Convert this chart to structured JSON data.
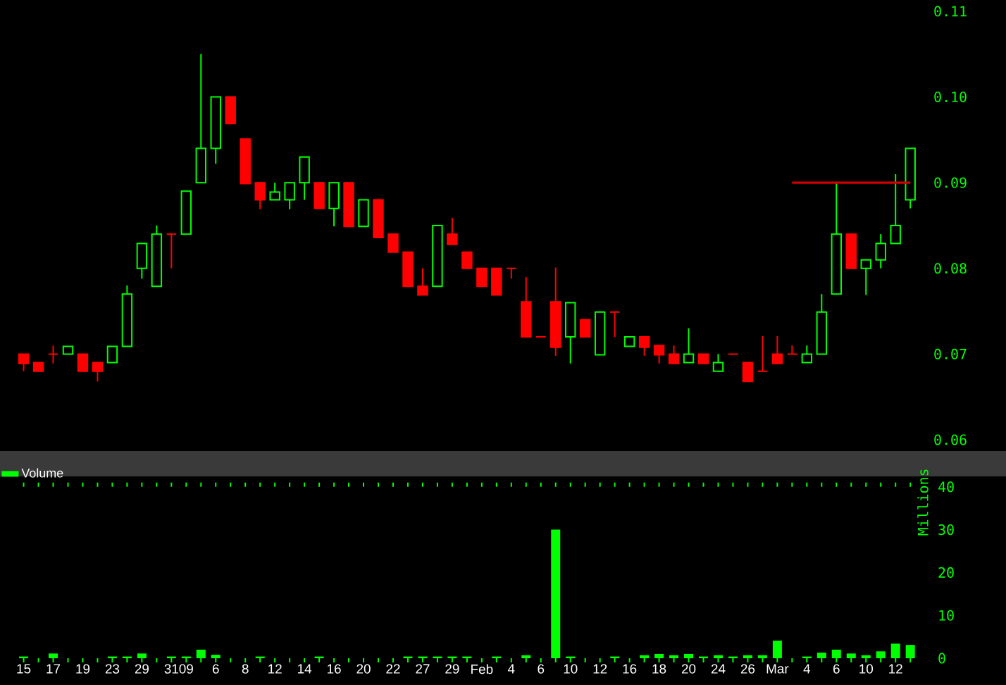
{
  "chart_data": [
    {
      "type": "candlestick",
      "ohlc": [
        [
          0.07,
          0.07,
          0.068,
          0.0689
        ],
        [
          0.069,
          0.069,
          0.068,
          0.068
        ],
        [
          0.07,
          0.071,
          0.0689,
          0.07
        ],
        [
          0.07,
          0.0709,
          0.07,
          0.0709
        ],
        [
          0.07,
          0.07,
          0.068,
          0.068
        ],
        [
          0.069,
          0.069,
          0.0668,
          0.068
        ],
        [
          0.069,
          0.0709,
          0.069,
          0.0709
        ],
        [
          0.0709,
          0.078,
          0.0709,
          0.077
        ],
        [
          0.08,
          0.0829,
          0.0788,
          0.0829
        ],
        [
          0.0779,
          0.085,
          0.0779,
          0.084
        ],
        [
          0.084,
          0.084,
          0.08,
          0.084
        ],
        [
          0.084,
          0.089,
          0.084,
          0.089
        ],
        [
          0.09,
          0.105,
          0.09,
          0.094
        ],
        [
          0.094,
          0.1,
          0.0922,
          0.1
        ],
        [
          0.1,
          0.1,
          0.0969,
          0.0969
        ],
        [
          0.0951,
          0.0951,
          0.0899,
          0.0899
        ],
        [
          0.09,
          0.09,
          0.0869,
          0.088
        ],
        [
          0.088,
          0.09,
          0.088,
          0.0889
        ],
        [
          0.088,
          0.09,
          0.0869,
          0.09
        ],
        [
          0.09,
          0.093,
          0.088,
          0.093
        ],
        [
          0.09,
          0.09,
          0.087,
          0.087
        ],
        [
          0.087,
          0.09,
          0.0849,
          0.09
        ],
        [
          0.09,
          0.09,
          0.0849,
          0.0849
        ],
        [
          0.0849,
          0.088,
          0.0849,
          0.088
        ],
        [
          0.088,
          0.088,
          0.0836,
          0.0836
        ],
        [
          0.084,
          0.084,
          0.0819,
          0.0819
        ],
        [
          0.0819,
          0.0819,
          0.0779,
          0.0779
        ],
        [
          0.0779,
          0.08,
          0.0769,
          0.0769
        ],
        [
          0.0779,
          0.085,
          0.0779,
          0.085
        ],
        [
          0.084,
          0.0859,
          0.0828,
          0.0828
        ],
        [
          0.0819,
          0.0819,
          0.08,
          0.08
        ],
        [
          0.08,
          0.08,
          0.0779,
          0.0779
        ],
        [
          0.08,
          0.08,
          0.0769,
          0.0769
        ],
        [
          0.08,
          0.08,
          0.0788,
          0.08
        ],
        [
          0.0761,
          0.079,
          0.072,
          0.072
        ],
        [
          0.072,
          0.072,
          0.072,
          0.072
        ],
        [
          0.0761,
          0.0801,
          0.0698,
          0.0708
        ],
        [
          0.072,
          0.076,
          0.0689,
          0.076
        ],
        [
          0.074,
          0.074,
          0.072,
          0.072
        ],
        [
          0.0699,
          0.0749,
          0.0699,
          0.0749
        ],
        [
          0.0749,
          0.0749,
          0.072,
          0.0749
        ],
        [
          0.0709,
          0.072,
          0.0709,
          0.072
        ],
        [
          0.072,
          0.072,
          0.0698,
          0.0708
        ],
        [
          0.071,
          0.071,
          0.0689,
          0.0699
        ],
        [
          0.07,
          0.071,
          0.0689,
          0.0689
        ],
        [
          0.069,
          0.073,
          0.069,
          0.07
        ],
        [
          0.07,
          0.07,
          0.0689,
          0.0689
        ],
        [
          0.068,
          0.07,
          0.068,
          0.069
        ],
        [
          0.07,
          0.07,
          0.07,
          0.07
        ],
        [
          0.069,
          0.069,
          0.0668,
          0.0668
        ],
        [
          0.068,
          0.0721,
          0.068,
          0.068
        ],
        [
          0.07,
          0.0721,
          0.0689,
          0.0689
        ],
        [
          0.07,
          0.071,
          0.07,
          0.07
        ],
        [
          0.069,
          0.071,
          0.069,
          0.07
        ],
        [
          0.07,
          0.077,
          0.07,
          0.0749
        ],
        [
          0.077,
          0.09,
          0.077,
          0.084
        ],
        [
          0.084,
          0.084,
          0.08,
          0.08
        ],
        [
          0.08,
          0.081,
          0.0769,
          0.081
        ],
        [
          0.081,
          0.084,
          0.08,
          0.0829
        ],
        [
          0.0829,
          0.091,
          0.0829,
          0.085
        ],
        [
          0.088,
          0.094,
          0.087,
          0.094
        ]
      ],
      "colors": [
        "#ff0000",
        "#ff0000",
        "#ff0000",
        "#00ff00",
        "#ff0000",
        "#ff0000",
        "#00ff00",
        "#00ff00",
        "#00ff00",
        "#00ff00",
        "#ff0000",
        "#00ff00",
        "#00ff00",
        "#00ff00",
        "#ff0000",
        "#ff0000",
        "#ff0000",
        "#00ff00",
        "#00ff00",
        "#00ff00",
        "#ff0000",
        "#00ff00",
        "#ff0000",
        "#00ff00",
        "#ff0000",
        "#ff0000",
        "#ff0000",
        "#ff0000",
        "#00ff00",
        "#ff0000",
        "#ff0000",
        "#ff0000",
        "#ff0000",
        "#ff0000",
        "#ff0000",
        "#ff0000",
        "#ff0000",
        "#00ff00",
        "#ff0000",
        "#00ff00",
        "#ff0000",
        "#00ff00",
        "#ff0000",
        "#ff0000",
        "#ff0000",
        "#00ff00",
        "#ff0000",
        "#00ff00",
        "#ff0000",
        "#ff0000",
        "#ff0000",
        "#ff0000",
        "#ff0000",
        "#00ff00",
        "#00ff00",
        "#00ff00",
        "#ff0000",
        "#00ff00",
        "#00ff00",
        "#00ff00",
        "#00ff00"
      ],
      "series": [
        {
          "type": "line",
          "color": "#cc0000",
          "values": [
            null,
            null,
            null,
            null,
            null,
            null,
            null,
            null,
            null,
            null,
            null,
            null,
            null,
            null,
            null,
            null,
            null,
            null,
            null,
            null,
            null,
            null,
            null,
            null,
            null,
            null,
            null,
            null,
            null,
            null,
            null,
            null,
            null,
            null,
            null,
            null,
            null,
            null,
            null,
            null,
            null,
            null,
            null,
            null,
            null,
            null,
            null,
            null,
            null,
            null,
            null,
            null,
            0.09,
            0.09,
            0.09,
            0.09,
            0.09,
            0.09,
            0.09,
            0.09,
            0.09
          ]
        }
      ],
      "ylim": [
        0.06,
        0.11
      ],
      "yticks": [
        0.06,
        0.07,
        0.08,
        0.09,
        {
          "value": 0.1,
          "label": "0.10"
        },
        0.11
      ],
      "tick_labels": "y"
    },
    {
      "type": "bar",
      "categories": [
        "15",
        null,
        "17",
        null,
        "19",
        null,
        "23",
        null,
        "29",
        null,
        "31",
        "09",
        null,
        "6",
        null,
        "8",
        null,
        "12",
        null,
        "14",
        null,
        "16",
        null,
        "20",
        null,
        "22",
        null,
        "27",
        null,
        "29",
        null,
        "Feb",
        null,
        "4",
        null,
        "6",
        null,
        "10",
        null,
        "12",
        null,
        "16",
        null,
        "18",
        null,
        "20",
        null,
        "24",
        null,
        "26",
        null,
        "Mar",
        null,
        "4",
        null,
        "6",
        null,
        "10",
        null,
        "12",
        null
      ],
      "series": [
        {
          "name": "Volume",
          "color": "#00ff00",
          "values": [
            0.4,
            0,
            1.1,
            0,
            0,
            0,
            0.4,
            0.4,
            1.1,
            0,
            0.4,
            0.4,
            2,
            0.8,
            0,
            0,
            0.4,
            0,
            0,
            0,
            0.4,
            0,
            0,
            0,
            0,
            0,
            0.4,
            0.4,
            0.4,
            0.4,
            0.4,
            0,
            0.4,
            0,
            0.7,
            0,
            30,
            0.4,
            0,
            0,
            0.4,
            0,
            0.7,
            1,
            0.7,
            1,
            0.4,
            0.7,
            0.4,
            0.7,
            0.7,
            4.1,
            0,
            0.4,
            1.3,
            2,
            1.1,
            0.7,
            1.6,
            3.4,
            3.1
          ]
        }
      ],
      "ylabel": "Millions",
      "ylim": [
        0,
        40
      ],
      "yticks": [
        0,
        10,
        20,
        30,
        40
      ],
      "legend": "top left"
    }
  ]
}
